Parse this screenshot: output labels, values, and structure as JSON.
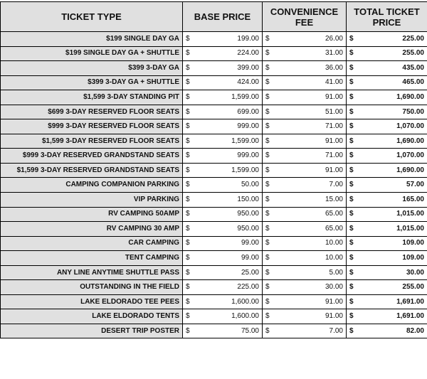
{
  "table": {
    "headers": [
      "TICKET TYPE",
      "BASE PRICE",
      "CONVENIENCE FEE",
      "TOTAL TICKET PRICE"
    ],
    "currency_symbol": "$",
    "rows": [
      {
        "type": "$199 SINGLE DAY GA",
        "base": "199.00",
        "fee": "26.00",
        "total": "225.00"
      },
      {
        "type": "$199 SINGLE DAY GA + SHUTTLE",
        "base": "224.00",
        "fee": "31.00",
        "total": "255.00"
      },
      {
        "type": "$399 3-DAY GA",
        "base": "399.00",
        "fee": "36.00",
        "total": "435.00"
      },
      {
        "type": "$399 3-DAY GA + SHUTTLE",
        "base": "424.00",
        "fee": "41.00",
        "total": "465.00"
      },
      {
        "type": "$1,599 3-DAY STANDING PIT",
        "base": "1,599.00",
        "fee": "91.00",
        "total": "1,690.00"
      },
      {
        "type": "$699 3-DAY RESERVED FLOOR SEATS",
        "base": "699.00",
        "fee": "51.00",
        "total": "750.00"
      },
      {
        "type": "$999 3-DAY RESERVED FLOOR SEATS",
        "base": "999.00",
        "fee": "71.00",
        "total": "1,070.00"
      },
      {
        "type": "$1,599 3-DAY RESERVED FLOOR SEATS",
        "base": "1,599.00",
        "fee": "91.00",
        "total": "1,690.00"
      },
      {
        "type": "$999 3-DAY RESERVED GRANDSTAND SEATS",
        "base": "999.00",
        "fee": "71.00",
        "total": "1,070.00"
      },
      {
        "type": "$1,599 3-DAY RESERVED GRANDSTAND SEATS",
        "base": "1,599.00",
        "fee": "91.00",
        "total": "1,690.00"
      },
      {
        "type": "CAMPING COMPANION PARKING",
        "base": "50.00",
        "fee": "7.00",
        "total": "57.00"
      },
      {
        "type": "VIP PARKING",
        "base": "150.00",
        "fee": "15.00",
        "total": "165.00"
      },
      {
        "type": "RV CAMPING 50AMP",
        "base": "950.00",
        "fee": "65.00",
        "total": "1,015.00"
      },
      {
        "type": "RV CAMPING 30 AMP",
        "base": "950.00",
        "fee": "65.00",
        "total": "1,015.00"
      },
      {
        "type": "CAR CAMPING",
        "base": "99.00",
        "fee": "10.00",
        "total": "109.00"
      },
      {
        "type": "TENT CAMPING",
        "base": "99.00",
        "fee": "10.00",
        "total": "109.00"
      },
      {
        "type": "ANY LINE ANYTIME SHUTTLE PASS",
        "base": "25.00",
        "fee": "5.00",
        "total": "30.00"
      },
      {
        "type": "OUTSTANDING IN THE FIELD",
        "base": "225.00",
        "fee": "30.00",
        "total": "255.00"
      },
      {
        "type": "LAKE ELDORADO TEE PEES",
        "base": "1,600.00",
        "fee": "91.00",
        "total": "1,691.00"
      },
      {
        "type": "LAKE ELDORADO TENTS",
        "base": "1,600.00",
        "fee": "91.00",
        "total": "1,691.00"
      },
      {
        "type": "DESERT TRIP POSTER",
        "base": "75.00",
        "fee": "7.00",
        "total": "82.00"
      }
    ]
  }
}
